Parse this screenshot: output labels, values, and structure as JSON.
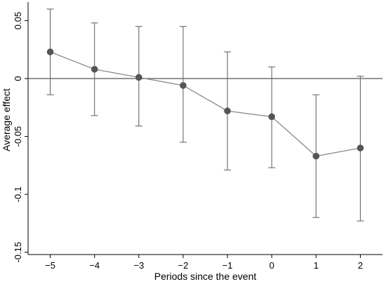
{
  "chart_data": {
    "type": "scatter",
    "title": "",
    "xlabel": "Periods since the event",
    "ylabel": "Average effect",
    "xlim": [
      -5.5,
      2.5
    ],
    "ylim": [
      -0.152,
      0.066
    ],
    "x_ticks": [
      -5,
      -4,
      -3,
      -2,
      -1,
      0,
      1,
      2
    ],
    "x_tick_labels": [
      "−5",
      "−4",
      "−3",
      "−2",
      "−1",
      "0",
      "1",
      "2"
    ],
    "y_ticks": [
      0.05,
      0,
      -0.05,
      -0.1,
      -0.15
    ],
    "y_tick_labels": [
      "0.05",
      "0",
      "-0.05",
      "-0.1",
      "-0.15"
    ],
    "reference_line_y": 0,
    "grid": false,
    "series": [
      {
        "x": [
          -5,
          -4,
          -3,
          -2,
          -1,
          0,
          1,
          2
        ],
        "estimate": [
          0.023,
          0.008,
          0.001,
          -0.006,
          -0.028,
          -0.033,
          -0.067,
          -0.06
        ],
        "ci_lower": [
          -0.014,
          -0.032,
          -0.041,
          -0.055,
          -0.079,
          -0.077,
          -0.12,
          -0.123
        ],
        "ci_upper": [
          0.06,
          0.048,
          0.045,
          0.045,
          0.023,
          0.01,
          -0.014,
          0.002
        ]
      }
    ],
    "colors": {
      "point": "#555555",
      "line": "#8a8a8a",
      "error_bar": "#6a6a6a",
      "reference_line": "#555555"
    }
  }
}
